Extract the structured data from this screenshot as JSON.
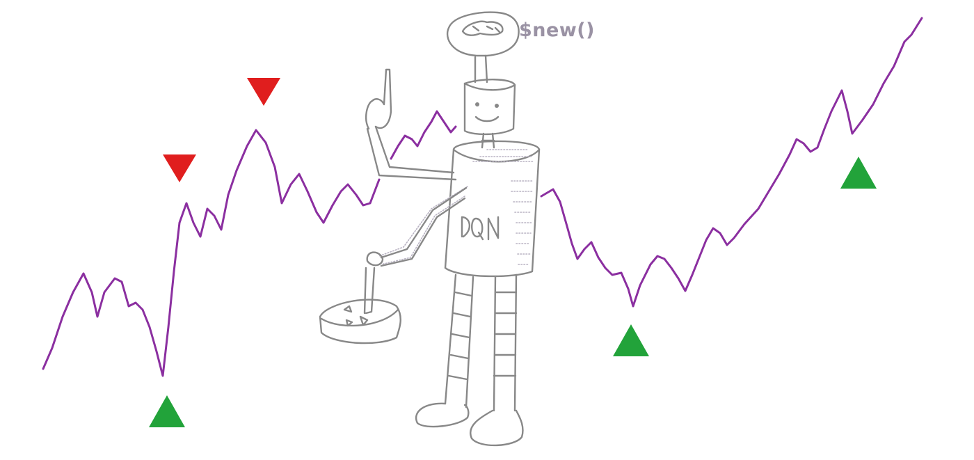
{
  "colors": {
    "price_line": "#8b2fa0",
    "buy_marker": "#22a33a",
    "sell_marker": "#e01e1e",
    "sketch": "#888888",
    "label": "#9a92a4"
  },
  "robot": {
    "thought_text": "$new()",
    "body_text": "DQN"
  },
  "markers": {
    "buy_count": 3,
    "sell_count": 2
  }
}
